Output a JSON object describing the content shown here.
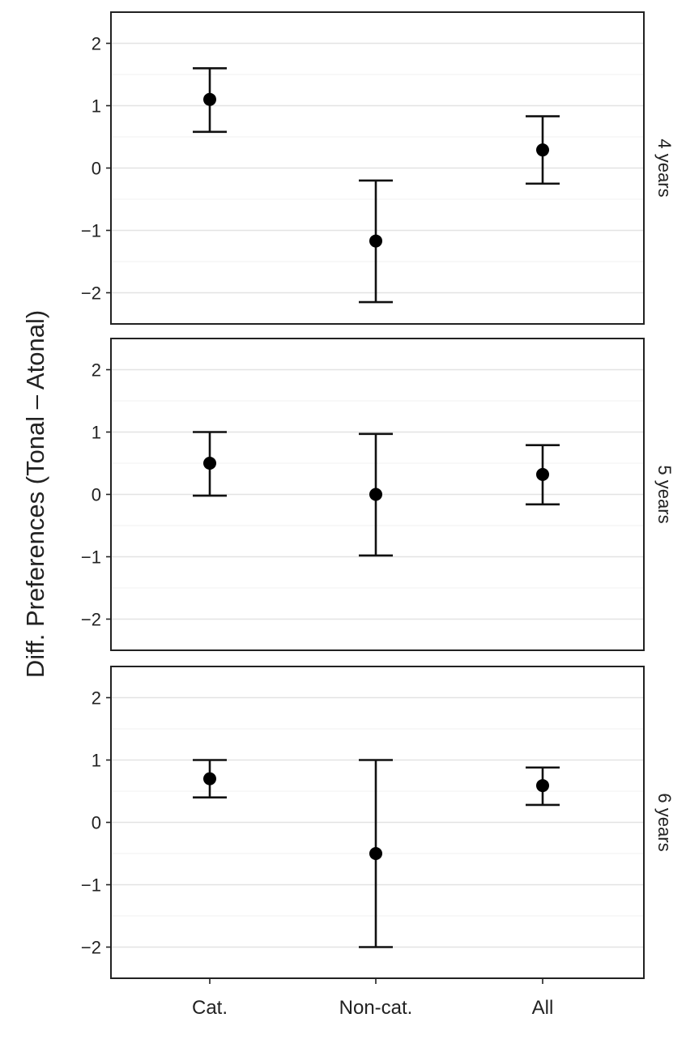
{
  "chart_data": {
    "type": "scatter",
    "subtype": "point-with-error-bars, faceted",
    "ylabel": "Diff. Preferences (Tonal – Atonal)",
    "xlabel": "",
    "categories": [
      "Cat.",
      "Non-cat.",
      "All"
    ],
    "ylim": [
      -2.5,
      2.5
    ],
    "yticks": [
      2,
      1,
      0,
      -1,
      -2
    ],
    "ytick_labels": [
      "2",
      "1",
      "0",
      "−1",
      "−2"
    ],
    "grid": true,
    "facets": [
      {
        "label": "4 years",
        "points": [
          {
            "category": "Cat.",
            "mean": 1.1,
            "lower": 0.58,
            "upper": 1.6
          },
          {
            "category": "Non-cat.",
            "mean": -1.17,
            "lower": -2.15,
            "upper": -0.2
          },
          {
            "category": "All",
            "mean": 0.29,
            "lower": -0.25,
            "upper": 0.83
          }
        ]
      },
      {
        "label": "5 years",
        "points": [
          {
            "category": "Cat.",
            "mean": 0.5,
            "lower": -0.02,
            "upper": 1.0
          },
          {
            "category": "Non-cat.",
            "mean": 0.0,
            "lower": -0.98,
            "upper": 0.97
          },
          {
            "category": "All",
            "mean": 0.32,
            "lower": -0.16,
            "upper": 0.79
          }
        ]
      },
      {
        "label": "6 years",
        "points": [
          {
            "category": "Cat.",
            "mean": 0.7,
            "lower": 0.4,
            "upper": 1.0
          },
          {
            "category": "Non-cat.",
            "mean": -0.5,
            "lower": -2.0,
            "upper": 1.0
          },
          {
            "category": "All",
            "mean": 0.59,
            "lower": 0.28,
            "upper": 0.88
          }
        ]
      }
    ]
  }
}
